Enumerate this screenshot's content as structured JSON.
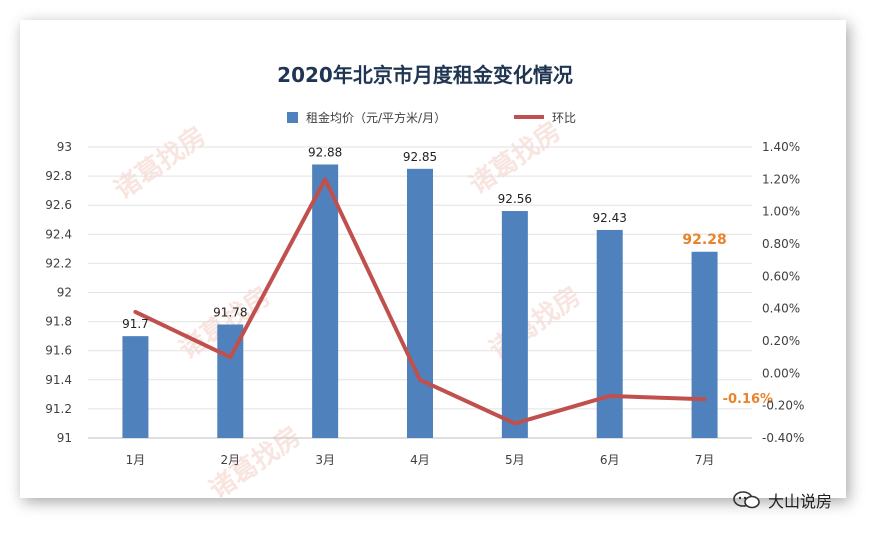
{
  "chart_data": {
    "type": "bar",
    "title": "2020年北京市月度租金变化情况",
    "categories": [
      "1月",
      "2月",
      "3月",
      "4月",
      "5月",
      "6月",
      "7月"
    ],
    "series": [
      {
        "name": "租金均价（元/平方米/月）",
        "type": "bar",
        "axis": "left",
        "values": [
          91.7,
          91.78,
          92.88,
          92.85,
          92.56,
          92.43,
          92.28
        ],
        "color": "#4f81bd"
      },
      {
        "name": "环比",
        "type": "line",
        "axis": "right",
        "values": [
          0.38,
          0.1,
          1.2,
          -0.04,
          -0.31,
          -0.14,
          -0.16
        ],
        "color": "#c0504d"
      }
    ],
    "data_labels": [
      "91.7",
      "91.78",
      "92.88",
      "92.85",
      "92.56",
      "92.43",
      "92.28"
    ],
    "highlight_labels": {
      "bar": "92.28",
      "line": "-0.16%"
    },
    "ylim_left": [
      91,
      93
    ],
    "ylim_right": [
      -0.4,
      1.4
    ],
    "left_ticks": [
      "91",
      "91.2",
      "91.4",
      "91.6",
      "91.8",
      "92",
      "92.2",
      "92.4",
      "92.6",
      "92.8",
      "93"
    ],
    "right_ticks": [
      "-0.40%",
      "-0.20%",
      "0.00%",
      "0.20%",
      "0.40%",
      "0.60%",
      "0.80%",
      "1.00%",
      "1.20%",
      "1.40%"
    ],
    "legend_position": "top-center",
    "grid": true,
    "highlight_color": "#e8832a"
  },
  "watermark": [
    "诸葛找房",
    "诸葛找房",
    "诸葛找房",
    "诸葛找房",
    "诸葛找房"
  ],
  "footer": {
    "icon": "wechat-icon",
    "text": "大山说房"
  }
}
